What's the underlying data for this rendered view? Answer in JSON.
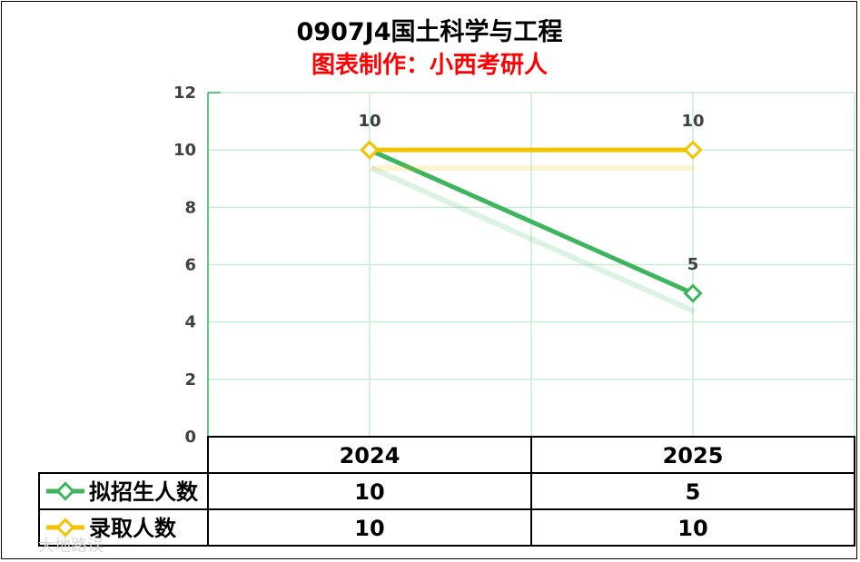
{
  "chart_data": {
    "type": "line",
    "title": "0907J4国土科学与工程",
    "subtitle": "图表制作：小西考研人",
    "categories": [
      "2024",
      "2025"
    ],
    "ylim": [
      0,
      12
    ],
    "yticks": [
      0,
      2,
      4,
      6,
      8,
      10,
      12
    ],
    "grid": true,
    "legend_placement": "data-table-rows",
    "series": [
      {
        "name": "拟招生人数",
        "values": [
          10,
          5
        ],
        "color": "#3cb55e"
      },
      {
        "name": "录取人数",
        "values": [
          10,
          10
        ],
        "color": "#f5c400"
      }
    ]
  },
  "watermark": "大地路误",
  "colors": {
    "grid": "#c6efd4",
    "axis_left": "#2fb35f",
    "border": "#000000"
  }
}
